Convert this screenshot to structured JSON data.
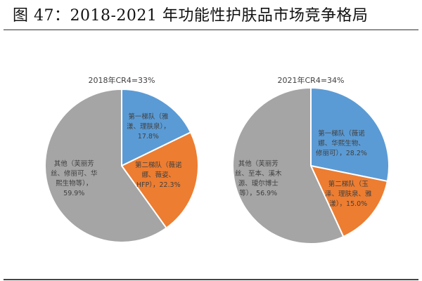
{
  "title": "图 47：2018-2021 年功能性护肤品市场竞争格局",
  "colors": {
    "blue": "#5B9BD5",
    "orange": "#ED7D31",
    "gray": "#A5A5A5"
  },
  "chart_data": [
    {
      "type": "pie",
      "title": "2018年CR4=33%",
      "slices": [
        {
          "label": "第一梯队（雅漾、理肤泉）",
          "value": 17.8,
          "color": "#5B9BD5"
        },
        {
          "label": "第二梯队（薇诺娜、薇姿、HFP）",
          "value": 22.3,
          "color": "#ED7D31"
        },
        {
          "label": "其他（芙丽芳丝、修丽可、华熙生物等）",
          "value": 59.9,
          "color": "#A5A5A5"
        }
      ]
    },
    {
      "type": "pie",
      "title": "2021年CR4=34%",
      "slices": [
        {
          "label": "第一梯队（薇诺娜、华熙生物、修丽可）",
          "value": 28.2,
          "color": "#5B9BD5"
        },
        {
          "label": "第二梯队（玉泽、理肤泉、雅漾）",
          "value": 15.0,
          "color": "#ED7D31"
        },
        {
          "label": "其他（芙丽芳丝、至本、溪木源、瑷尔博士等）",
          "value": 56.9,
          "color": "#A5A5A5"
        }
      ]
    }
  ],
  "labels": {
    "p2018": {
      "blue": [
        "第一梯队（雅",
        "漾、理肤泉），",
        "17.8%"
      ],
      "orange": [
        "第二梯队（薇诺",
        "娜、薇姿、",
        "HFP），22.3%"
      ],
      "gray": [
        "其他（芙丽芳",
        "丝、修丽可、华",
        "熙生物等），",
        "59.9%"
      ]
    },
    "p2021": {
      "blue": [
        "第一梯队（薇诺",
        "娜、华熙生物、",
        "修丽可），28.2%"
      ],
      "orange": [
        "第二梯队（玉",
        "泽、理肤泉、雅",
        "漾），15.0%"
      ],
      "gray": [
        "其他（芙丽芳",
        "丝、至本、溪木",
        "源、瑷尔博士",
        "等），56.9%"
      ]
    }
  }
}
